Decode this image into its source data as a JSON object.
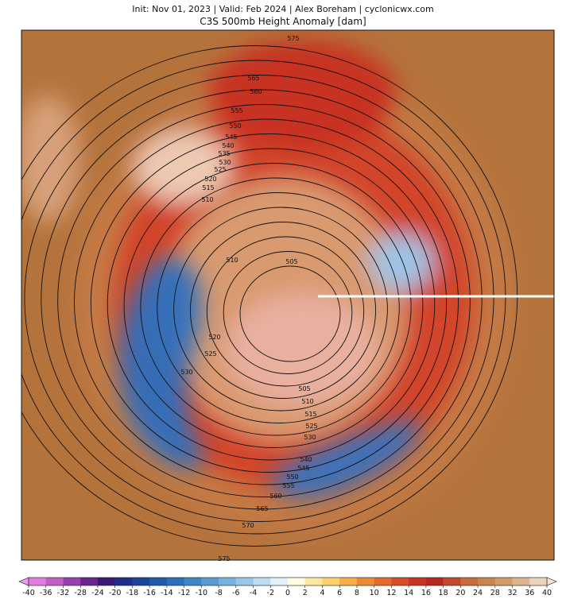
{
  "header": {
    "subtitle": "Init: Nov 01, 2023 | Valid: Feb 2024 | Alex Boreham | cyclonicwx.com",
    "title": "C3S 500mb Height Anomaly [dam]"
  },
  "map": {
    "contour_labels": [
      "575",
      "565",
      "560",
      "555",
      "550",
      "545",
      "540",
      "535",
      "530",
      "525",
      "520",
      "515",
      "510",
      "510",
      "505",
      "520",
      "525",
      "530",
      "505",
      "510",
      "515",
      "525",
      "530",
      "540",
      "545",
      "550",
      "555",
      "560",
      "565",
      "570",
      "575"
    ]
  },
  "colorbar": {
    "ticks": [
      -40,
      -36,
      -32,
      -28,
      -24,
      -20,
      -18,
      -16,
      -14,
      -12,
      -10,
      -8,
      -6,
      -4,
      -2,
      0,
      2,
      4,
      6,
      8,
      10,
      12,
      14,
      16,
      18,
      20,
      24,
      28,
      32,
      36,
      40
    ],
    "colors": [
      "#e07ee0",
      "#c35ec8",
      "#9a3fb0",
      "#6a2590",
      "#3a1a78",
      "#1f2f8a",
      "#1d459e",
      "#1f5aad",
      "#2b6fbd",
      "#3f86c9",
      "#5a9bd3",
      "#78b1dd",
      "#99c7e7",
      "#bcdcf1",
      "#e2f0fa",
      "#fffbe0",
      "#fde7a0",
      "#fbcf6a",
      "#f6ad45",
      "#ee8a33",
      "#e46a2a",
      "#d84d25",
      "#c93522",
      "#b82820",
      "#c14a2a",
      "#c96b3a",
      "#c98450",
      "#d39a6c",
      "#deb48e",
      "#ead2bc"
    ],
    "under": "#f09af0",
    "over": "#f4e3d6"
  }
}
